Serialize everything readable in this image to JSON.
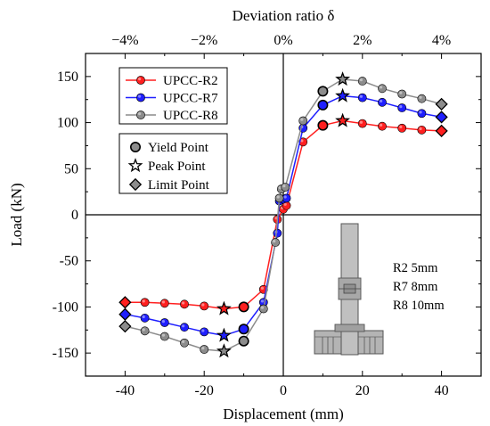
{
  "chart_data": {
    "type": "line",
    "title": "",
    "xlabel": "Displacement (mm)",
    "ylabel": "Load (kN)",
    "top_xlabel": "Deviation ratio δ",
    "xlim": [
      -50,
      50
    ],
    "ylim": [
      -175,
      175
    ],
    "xticks": [
      -40,
      -20,
      0,
      20,
      40
    ],
    "xtick_labels": [
      "-40",
      "-20",
      "0",
      "20",
      "40"
    ],
    "yticks": [
      -150,
      -100,
      -50,
      0,
      50,
      100,
      150
    ],
    "ytick_labels": [
      "-150",
      "-100",
      "-50",
      "0",
      "50",
      "100",
      "150"
    ],
    "top_ticks": [
      -40,
      -20,
      0,
      20,
      40
    ],
    "top_tick_labels": [
      "−4%",
      "−2%",
      "0%",
      "2%",
      "4%"
    ],
    "grid": false,
    "legend_placement": "top-left",
    "series": [
      {
        "name": "UPCC-R2",
        "color": "#ff1f1f",
        "points": [
          [
            -40,
            -95
          ],
          [
            -35,
            -95
          ],
          [
            -30,
            -96
          ],
          [
            -25,
            -97
          ],
          [
            -20,
            -99
          ],
          [
            -15,
            -102
          ],
          [
            -10,
            -100
          ],
          [
            -5,
            -81
          ],
          [
            -1.5,
            -5
          ],
          [
            0,
            6
          ],
          [
            0.8,
            10
          ],
          [
            5,
            79
          ],
          [
            10,
            97
          ],
          [
            15,
            102
          ],
          [
            20,
            99
          ],
          [
            25,
            96
          ],
          [
            30,
            94
          ],
          [
            35,
            92
          ],
          [
            40,
            91
          ]
        ],
        "yield": [
          [
            -10,
            -100
          ],
          [
            10,
            97
          ]
        ],
        "peak": [
          [
            -15,
            -102
          ],
          [
            15,
            102
          ]
        ],
        "limit": [
          [
            -40,
            -95
          ],
          [
            40,
            91
          ]
        ]
      },
      {
        "name": "UPCC-R7",
        "color": "#1f1fff",
        "points": [
          [
            -40,
            -108
          ],
          [
            -35,
            -112
          ],
          [
            -30,
            -117
          ],
          [
            -25,
            -122
          ],
          [
            -20,
            -127
          ],
          [
            -15,
            -131
          ],
          [
            -10,
            -124
          ],
          [
            -5,
            -95
          ],
          [
            -1.5,
            -20
          ],
          [
            -1,
            15
          ],
          [
            0,
            17
          ],
          [
            0.8,
            18
          ],
          [
            5,
            94
          ],
          [
            10,
            119
          ],
          [
            15,
            129
          ],
          [
            20,
            127
          ],
          [
            25,
            122
          ],
          [
            30,
            116
          ],
          [
            35,
            110
          ],
          [
            40,
            106
          ]
        ],
        "yield": [
          [
            -10,
            -124
          ],
          [
            10,
            119
          ]
        ],
        "peak": [
          [
            -15,
            -131
          ],
          [
            15,
            129
          ]
        ],
        "limit": [
          [
            -40,
            -108
          ],
          [
            40,
            106
          ]
        ]
      },
      {
        "name": "UPCC-R8",
        "color": "#8c8c8c",
        "points": [
          [
            -40,
            -121
          ],
          [
            -35,
            -126
          ],
          [
            -30,
            -132
          ],
          [
            -25,
            -139
          ],
          [
            -20,
            -146
          ],
          [
            -15,
            -148
          ],
          [
            -10,
            -137
          ],
          [
            -5,
            -102
          ],
          [
            -2,
            -30
          ],
          [
            -1,
            18
          ],
          [
            -0.5,
            28
          ],
          [
            0.5,
            30
          ],
          [
            5,
            102
          ],
          [
            10,
            134
          ],
          [
            15,
            147
          ],
          [
            20,
            145
          ],
          [
            25,
            137
          ],
          [
            30,
            131
          ],
          [
            35,
            126
          ],
          [
            40,
            120
          ]
        ],
        "yield": [
          [
            -10,
            -137
          ],
          [
            10,
            134
          ]
        ],
        "peak": [
          [
            -15,
            -148
          ],
          [
            15,
            147
          ]
        ],
        "limit": [
          [
            -40,
            -121
          ],
          [
            40,
            120
          ]
        ]
      }
    ],
    "point_legend": [
      {
        "label": "Yield Point",
        "marker": "circle"
      },
      {
        "label": "Peak Point",
        "marker": "star"
      },
      {
        "label": "Limit Point",
        "marker": "diamond"
      }
    ],
    "annotation_lines": [
      "R2 5mm",
      "R7 8mm",
      "R8 10mm"
    ]
  }
}
